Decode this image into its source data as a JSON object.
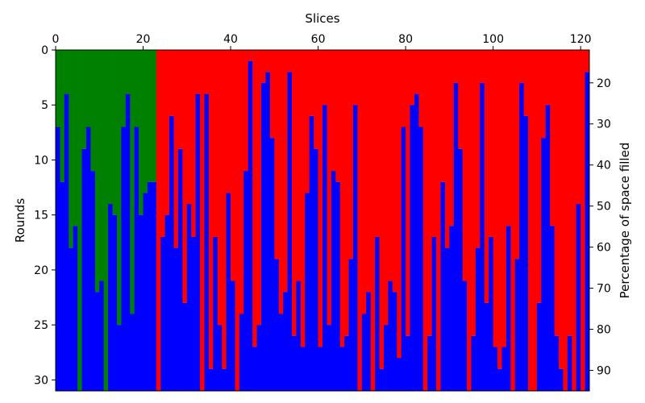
{
  "chart_data": {
    "type": "heatmap",
    "title": "",
    "xlabel": "Slices",
    "ylabel": "Rounds",
    "y2label": "Percentage of space filled",
    "xlim": [
      0,
      122
    ],
    "ylim": [
      31,
      0
    ],
    "y2lim": [
      95,
      12
    ],
    "xticks": [
      0,
      20,
      40,
      60,
      80,
      100,
      120
    ],
    "yticks": [
      0,
      5,
      10,
      15,
      20,
      25,
      30
    ],
    "y2ticks": [
      20,
      30,
      40,
      50,
      60,
      70,
      80,
      90
    ],
    "grid": false,
    "legend": "none",
    "colors": {
      "green": "#008000",
      "red": "#ff0000",
      "blue": "#0000ff"
    },
    "green_slices": [
      0,
      22
    ],
    "blue_start_round": [
      7,
      12,
      4,
      18,
      16,
      31,
      9,
      7,
      11,
      22,
      21,
      31,
      14,
      15,
      25,
      7,
      4,
      24,
      7,
      15,
      13,
      12,
      12,
      31,
      17,
      15,
      6,
      18,
      9,
      23,
      14,
      17,
      4,
      31,
      4,
      29,
      17,
      25,
      29,
      13,
      21,
      31,
      24,
      11,
      1,
      27,
      25,
      3,
      2,
      8,
      19,
      24,
      22,
      2,
      26,
      21,
      27,
      13,
      6,
      9,
      27,
      5,
      25,
      11,
      12,
      27,
      26,
      19,
      5,
      31,
      24,
      22,
      31,
      17,
      29,
      25,
      21,
      22,
      28,
      7,
      26,
      5,
      4,
      7,
      31,
      26,
      17,
      31,
      12,
      18,
      16,
      3,
      9,
      21,
      31,
      26,
      18,
      3,
      23,
      17,
      27,
      29,
      27,
      16,
      31,
      19,
      3,
      6,
      31,
      31,
      23,
      8,
      5,
      16,
      26,
      29,
      31,
      26,
      31,
      14,
      31,
      2
    ]
  }
}
